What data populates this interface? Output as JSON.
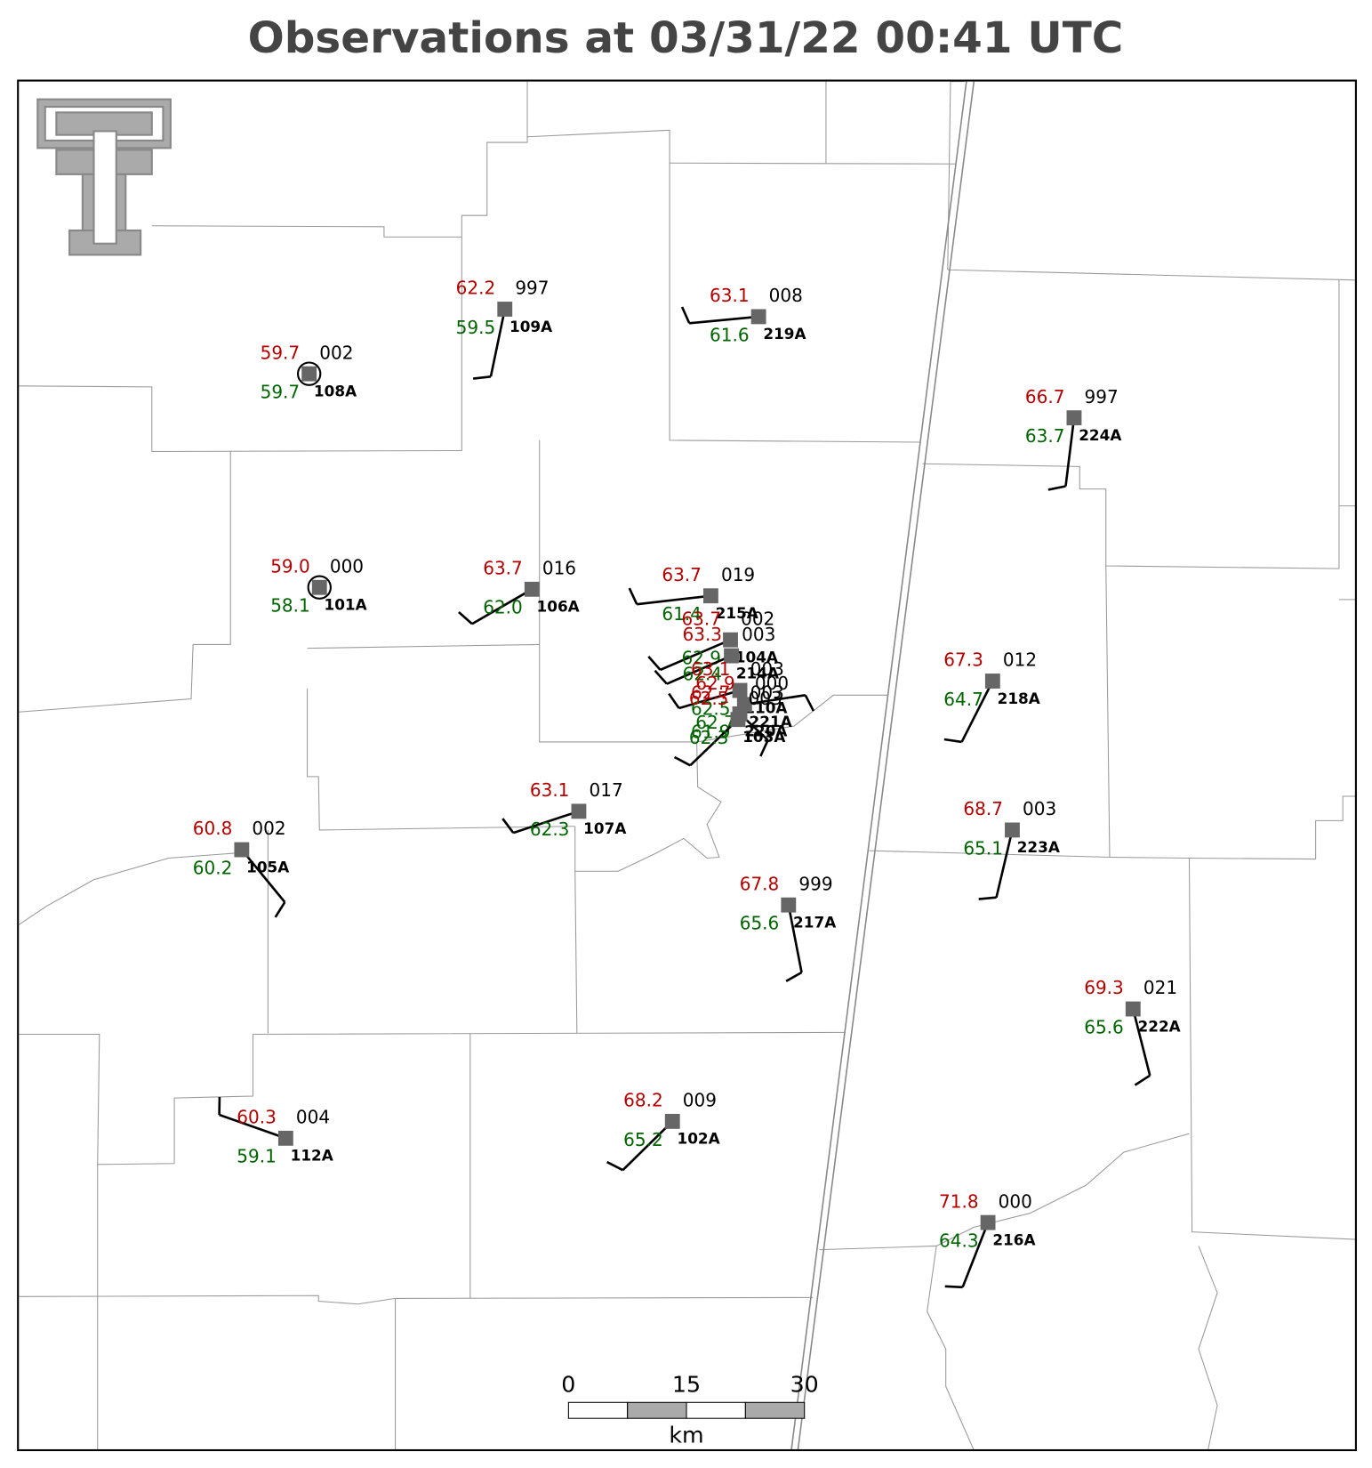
{
  "title": "Observations at 03/31/22 00:41 UTC",
  "stations": [
    {
      "id": "108A",
      "temperature": "59.7",
      "dewpoint": "59.7",
      "pressure": "002"
    },
    {
      "id": "109A",
      "temperature": "62.2",
      "dewpoint": "59.5",
      "pressure": "997"
    },
    {
      "id": "219A",
      "temperature": "63.1",
      "dewpoint": "61.6",
      "pressure": "008"
    },
    {
      "id": "224A",
      "temperature": "66.7",
      "dewpoint": "63.7",
      "pressure": "997"
    },
    {
      "id": "101A",
      "temperature": "59.0",
      "dewpoint": "58.1",
      "pressure": "000"
    },
    {
      "id": "106A",
      "temperature": "63.7",
      "dewpoint": "62.0",
      "pressure": "016"
    },
    {
      "id": "215A",
      "temperature": "63.7",
      "dewpoint": "61.4",
      "pressure": "019"
    },
    {
      "id": "104A",
      "temperature": "63.7",
      "dewpoint": "62.9",
      "pressure": "002"
    },
    {
      "id": "214A",
      "temperature": "63.3",
      "dewpoint": "62.4",
      "pressure": "003"
    },
    {
      "id": "110A",
      "temperature": "63.1",
      "dewpoint": "62.5",
      "pressure": "003"
    },
    {
      "id": "221A",
      "temperature": "62.9",
      "dewpoint": "62.7",
      "pressure": "000"
    },
    {
      "id": "220A",
      "temperature": "62.7",
      "dewpoint": "61.9",
      "pressure": "003"
    },
    {
      "id": "103A",
      "temperature": "62.5",
      "dewpoint": "62.3",
      "pressure": "003"
    },
    {
      "id": "218A",
      "temperature": "67.3",
      "dewpoint": "64.7",
      "pressure": "012"
    },
    {
      "id": "107A",
      "temperature": "63.1",
      "dewpoint": "62.3",
      "pressure": "017"
    },
    {
      "id": "105A",
      "temperature": "60.8",
      "dewpoint": "60.2",
      "pressure": "002"
    },
    {
      "id": "217A",
      "temperature": "67.8",
      "dewpoint": "65.6",
      "pressure": "999"
    },
    {
      "id": "223A",
      "temperature": "68.7",
      "dewpoint": "65.1",
      "pressure": "003"
    },
    {
      "id": "222A",
      "temperature": "69.3",
      "dewpoint": "65.6",
      "pressure": "021"
    },
    {
      "id": "112A",
      "temperature": "60.3",
      "dewpoint": "59.1",
      "pressure": "004"
    },
    {
      "id": "102A",
      "temperature": "68.2",
      "dewpoint": "65.2",
      "pressure": "009"
    },
    {
      "id": "216A",
      "temperature": "71.8",
      "dewpoint": "64.3",
      "pressure": "000"
    }
  ],
  "scale_bar": {
    "labels": [
      "0",
      "15",
      "30"
    ],
    "unit": "km"
  }
}
